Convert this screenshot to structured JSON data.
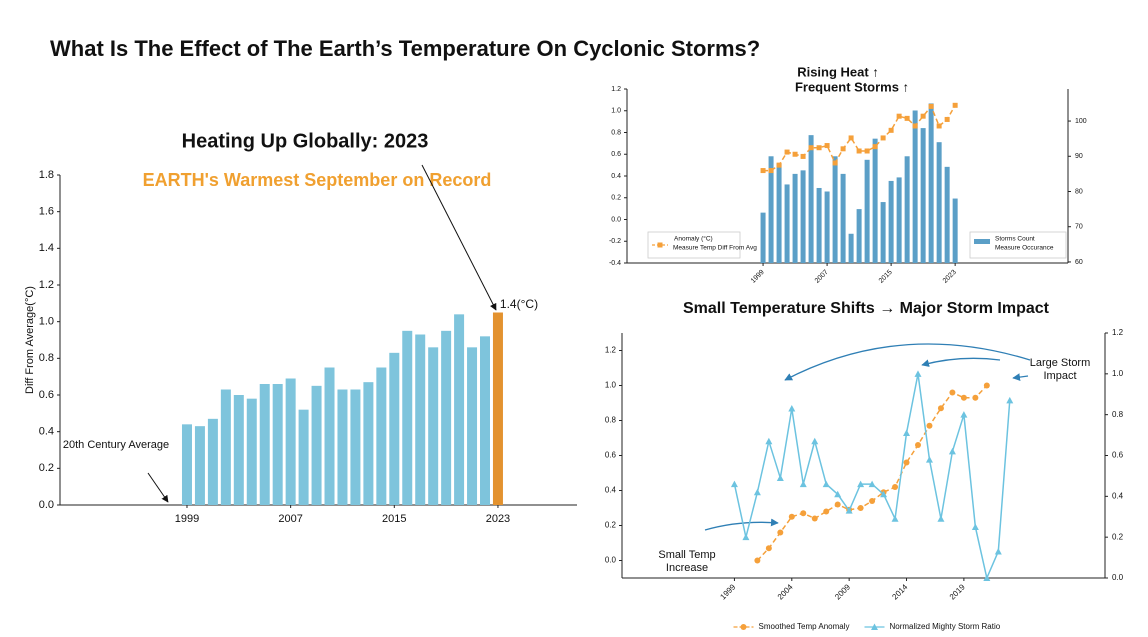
{
  "slide_title": "What Is The Effect of The Earth’s Temperature On Cyclonic Storms?",
  "chart_data": [
    {
      "type": "bar",
      "title": "Heating Up Globally: 2023",
      "subtitle": "EARTH's Warmest September on Record",
      "y_label": "Diff From Average(°C)",
      "x": [
        1999,
        2000,
        2001,
        2002,
        2003,
        2004,
        2005,
        2006,
        2007,
        2008,
        2009,
        2010,
        2011,
        2012,
        2013,
        2014,
        2015,
        2016,
        2017,
        2018,
        2019,
        2020,
        2021,
        2022,
        2023
      ],
      "values": [
        0.44,
        0.43,
        0.47,
        0.63,
        0.6,
        0.58,
        0.66,
        0.66,
        0.69,
        0.52,
        0.65,
        0.75,
        0.63,
        0.63,
        0.67,
        0.75,
        0.83,
        0.95,
        0.93,
        0.86,
        0.95,
        1.04,
        0.86,
        0.92,
        1.05
      ],
      "colors": [
        "#7ec4dc",
        "#7ec4dc",
        "#7ec4dc",
        "#7ec4dc",
        "#7ec4dc",
        "#7ec4dc",
        "#7ec4dc",
        "#7ec4dc",
        "#7ec4dc",
        "#7ec4dc",
        "#7ec4dc",
        "#7ec4dc",
        "#7ec4dc",
        "#7ec4dc",
        "#7ec4dc",
        "#7ec4dc",
        "#7ec4dc",
        "#7ec4dc",
        "#7ec4dc",
        "#7ec4dc",
        "#7ec4dc",
        "#7ec4dc",
        "#7ec4dc",
        "#7ec4dc",
        "#e3922f"
      ],
      "xlim": [
        1989.2,
        2029.1
      ],
      "xticks": [
        1999,
        2007,
        2015,
        2023
      ],
      "ylim": [
        0,
        1.8
      ],
      "yticks": [
        {
          "value": 0,
          "label": "0.0"
        },
        0.2,
        0.4,
        0.6,
        0.8,
        {
          "value": 1,
          "label": "1.0"
        },
        1.2,
        1.4,
        1.6,
        1.8
      ],
      "annotations": [
        {
          "text": "1.4(°C)"
        },
        {
          "text": "20th Century Average"
        }
      ]
    },
    {
      "type": "combo",
      "title": [
        "Rising Heat ↑",
        "Frequent Storms ↑"
      ],
      "x": [
        1999,
        2000,
        2001,
        2002,
        2003,
        2004,
        2005,
        2006,
        2007,
        2008,
        2009,
        2010,
        2011,
        2012,
        2013,
        2014,
        2015,
        2016,
        2017,
        2018,
        2019,
        2020,
        2021,
        2022,
        2023
      ],
      "xlim": [
        1982,
        2037.1
      ],
      "xticks": [
        1999,
        2007,
        2015,
        2023
      ],
      "ylim": [
        -0.4,
        1.2
      ],
      "yticks": [
        -0.4,
        -0.2,
        {
          "value": 0,
          "label": "0.0"
        },
        0.2,
        0.4,
        0.6,
        0.8,
        {
          "value": 1,
          "label": "1.0"
        },
        1.2
      ],
      "y2lim": [
        59.7,
        109.1
      ],
      "y2ticks": [
        60,
        70,
        80,
        90,
        100
      ],
      "series": [
        {
          "type": "bar",
          "axis": "y2",
          "legend_title": "Storms Count",
          "name": "Measure Occurance",
          "color": "#5b9fc7",
          "legend_loc": "lower right",
          "values": [
            74,
            90,
            88,
            82,
            85,
            86,
            96,
            81,
            80,
            90,
            85,
            68,
            75,
            89,
            95,
            77,
            83,
            84,
            90,
            103,
            98,
            105,
            94,
            87,
            78
          ]
        },
        {
          "type": "line",
          "legend_title": "Anomaly (°C)",
          "name": "Measure Temp Diff From Avg",
          "color": "#f5a03a",
          "marker": "s",
          "linestyle": "--",
          "legend_loc": "lower left",
          "values": [
            0.45,
            0.45,
            0.5,
            0.62,
            0.6,
            0.58,
            0.66,
            0.66,
            0.68,
            0.52,
            0.65,
            0.75,
            0.63,
            0.63,
            0.67,
            0.75,
            0.82,
            0.95,
            0.93,
            0.86,
            0.95,
            1.04,
            0.86,
            0.92,
            1.05
          ]
        }
      ]
    },
    {
      "type": "line",
      "title": "Small Temperature Shifts → Major Storm Impact",
      "x": [
        1999,
        2000,
        2001,
        2002,
        2003,
        2004,
        2005,
        2006,
        2007,
        2008,
        2009,
        2010,
        2011,
        2012,
        2013,
        2014,
        2015,
        2016,
        2017,
        2018,
        2019,
        2020,
        2021,
        2022,
        2023
      ],
      "xlim": [
        1989.2,
        2031.3
      ],
      "xticks": [
        1999,
        2004,
        2009,
        2014,
        2019
      ],
      "ylim": [
        -0.1,
        1.3
      ],
      "yticks": [
        {
          "value": 0,
          "label": "0.0"
        },
        0.2,
        0.4,
        0.6,
        0.8,
        {
          "value": 1,
          "label": "1.0"
        },
        1.2
      ],
      "y2lim": [
        0,
        1.2
      ],
      "y2ticks": [
        {
          "value": 0,
          "label": "0.0"
        },
        0.2,
        0.4,
        0.6,
        0.8,
        {
          "value": 1,
          "label": "1.0"
        },
        1.2
      ],
      "legend": "lower center",
      "series": [
        {
          "name": "Smoothed Temp Anomaly",
          "color": "#f5a03a",
          "marker": "o",
          "linestyle": "--",
          "values": [
            null,
            null,
            0.0,
            0.07,
            0.16,
            0.25,
            0.27,
            0.24,
            0.28,
            0.32,
            0.29,
            0.3,
            0.34,
            0.39,
            0.42,
            0.56,
            0.66,
            0.77,
            0.87,
            0.96,
            0.93,
            0.93,
            1.0,
            null,
            null
          ]
        },
        {
          "name": "Normalized Mighty Storm Ratio",
          "axis": "y2",
          "color": "#6cc3e0",
          "marker": "^",
          "linestyle": "-",
          "values": [
            0.46,
            0.2,
            0.42,
            0.67,
            0.49,
            0.83,
            0.46,
            0.67,
            0.46,
            0.41,
            0.33,
            0.46,
            0.46,
            0.41,
            0.29,
            0.71,
            1.0,
            0.58,
            0.29,
            0.62,
            0.8,
            0.25,
            0.0,
            0.13,
            0.87
          ]
        }
      ],
      "annotations": [
        {
          "lines": [
            "Small Temp",
            "Increase"
          ]
        },
        {
          "lines": [
            "Large Storm",
            "Impact"
          ]
        }
      ]
    }
  ]
}
